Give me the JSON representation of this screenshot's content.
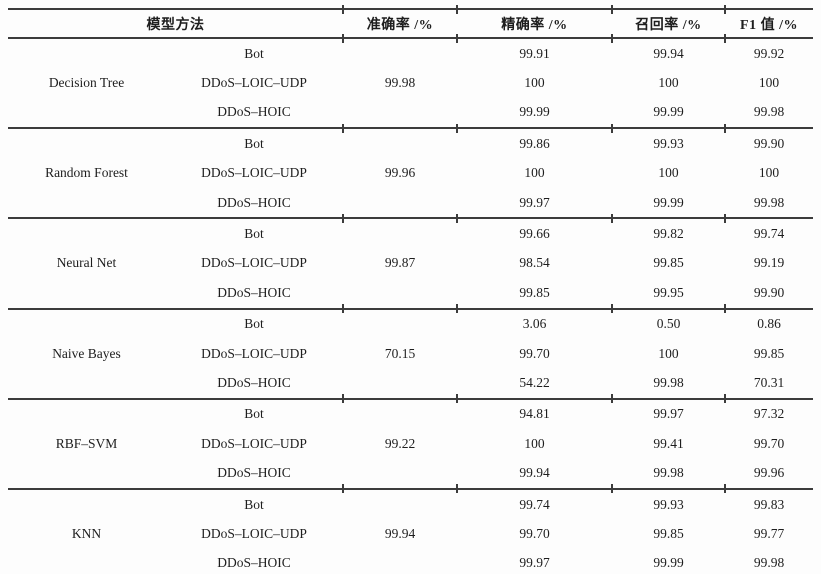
{
  "line_color": "#3c3c3c",
  "text_color": "#1e1e1e",
  "table": {
    "headers": {
      "model_method": "模型方法",
      "accuracy": "准确率 /%",
      "precision": "精确率 /%",
      "recall": "召回率 /%",
      "f1": "F1 值 /%"
    },
    "groups": [
      {
        "model": "Decision Tree",
        "accuracy": "99.98",
        "rows": [
          {
            "attack": "Bot",
            "precision": "99.91",
            "recall": "99.94",
            "f1": "99.92"
          },
          {
            "attack": "DDoS–LOIC–UDP",
            "precision": "100",
            "recall": "100",
            "f1": "100"
          },
          {
            "attack": "DDoS–HOIC",
            "precision": "99.99",
            "recall": "99.99",
            "f1": "99.98"
          }
        ]
      },
      {
        "model": "Random Forest",
        "accuracy": "99.96",
        "rows": [
          {
            "attack": "Bot",
            "precision": "99.86",
            "recall": "99.93",
            "f1": "99.90"
          },
          {
            "attack": "DDoS–LOIC–UDP",
            "precision": "100",
            "recall": "100",
            "f1": "100"
          },
          {
            "attack": "DDoS–HOIC",
            "precision": "99.97",
            "recall": "99.99",
            "f1": "99.98"
          }
        ]
      },
      {
        "model": "Neural Net",
        "accuracy": "99.87",
        "rows": [
          {
            "attack": "Bot",
            "precision": "99.66",
            "recall": "99.82",
            "f1": "99.74"
          },
          {
            "attack": "DDoS–LOIC–UDP",
            "precision": "98.54",
            "recall": "99.85",
            "f1": "99.19"
          },
          {
            "attack": "DDoS–HOIC",
            "precision": "99.85",
            "recall": "99.95",
            "f1": "99.90"
          }
        ]
      },
      {
        "model": "Naive Bayes",
        "accuracy": "70.15",
        "rows": [
          {
            "attack": "Bot",
            "precision": "3.06",
            "recall": "0.50",
            "f1": "0.86"
          },
          {
            "attack": "DDoS–LOIC–UDP",
            "precision": "99.70",
            "recall": "100",
            "f1": "99.85"
          },
          {
            "attack": "DDoS–HOIC",
            "precision": "54.22",
            "recall": "99.98",
            "f1": "70.31"
          }
        ]
      },
      {
        "model": "RBF–SVM",
        "accuracy": "99.22",
        "rows": [
          {
            "attack": "Bot",
            "precision": "94.81",
            "recall": "99.97",
            "f1": "97.32"
          },
          {
            "attack": "DDoS–LOIC–UDP",
            "precision": "100",
            "recall": "99.41",
            "f1": "99.70"
          },
          {
            "attack": "DDoS–HOIC",
            "precision": "99.94",
            "recall": "99.98",
            "f1": "99.96"
          }
        ]
      },
      {
        "model": "KNN",
        "accuracy": "99.94",
        "rows": [
          {
            "attack": "Bot",
            "precision": "99.74",
            "recall": "99.93",
            "f1": "99.83"
          },
          {
            "attack": "DDoS–LOIC–UDP",
            "precision": "99.70",
            "recall": "99.85",
            "f1": "99.77"
          },
          {
            "attack": "DDoS–HOIC",
            "precision": "99.97",
            "recall": "99.99",
            "f1": "99.98"
          }
        ]
      }
    ]
  }
}
